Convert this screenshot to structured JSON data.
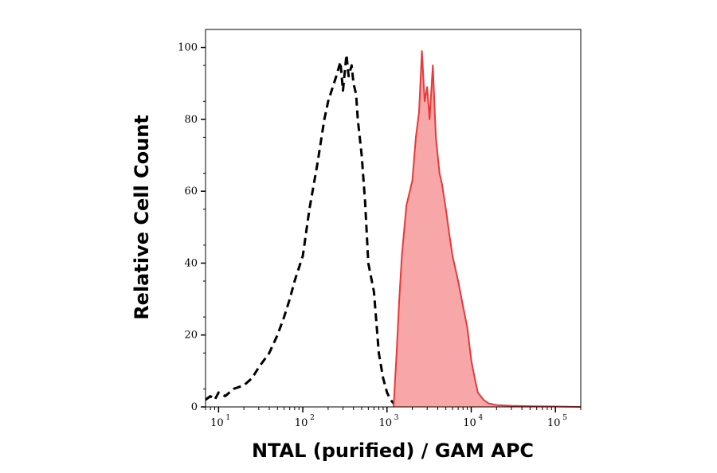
{
  "chart_data": {
    "type": "area",
    "xlabel": "NTAL (purified) / GAM APC",
    "ylabel": "Relative Cell Count",
    "x_scale": "log",
    "xlim": [
      7,
      200000
    ],
    "ylim": [
      0,
      105
    ],
    "y_ticks": [
      {
        "value": 0,
        "label": "0"
      },
      {
        "value": 20,
        "label": "20"
      },
      {
        "value": 40,
        "label": "40"
      },
      {
        "value": 60,
        "label": "60"
      },
      {
        "value": 80,
        "label": "80"
      },
      {
        "value": 100,
        "label": "100"
      }
    ],
    "x_ticks": [
      {
        "value": 10,
        "base": "10",
        "exp": "1"
      },
      {
        "value": 100,
        "base": "10",
        "exp": "2"
      },
      {
        "value": 1000,
        "base": "10",
        "exp": "3"
      },
      {
        "value": 10000,
        "base": "10",
        "exp": "4"
      },
      {
        "value": 100000,
        "base": "10",
        "exp": "5"
      }
    ],
    "grid": false,
    "series": [
      {
        "style": "dashed-outline",
        "color": "#000000",
        "x": [
          7,
          8,
          9,
          10,
          12,
          15,
          20,
          25,
          30,
          40,
          50,
          60,
          70,
          80,
          100,
          120,
          150,
          180,
          200,
          250,
          280,
          300,
          330,
          350,
          380,
          400,
          430,
          450,
          500,
          550,
          600,
          700,
          800,
          900,
          1000,
          1100,
          1200,
          1300
        ],
        "y": [
          2,
          3,
          2,
          4,
          3,
          5,
          6,
          8,
          11,
          15,
          20,
          25,
          30,
          35,
          42,
          55,
          68,
          80,
          85,
          92,
          96,
          88,
          98,
          92,
          95,
          90,
          87,
          80,
          70,
          57,
          40,
          32,
          15,
          8,
          4,
          2,
          1,
          0
        ]
      },
      {
        "style": "filled",
        "color": "#e8383a",
        "fill": "#f8a7a8",
        "x": [
          1200,
          1300,
          1400,
          1500,
          1700,
          2000,
          2200,
          2400,
          2600,
          2800,
          3000,
          3200,
          3500,
          3800,
          4000,
          4200,
          4500,
          5000,
          5500,
          6000,
          7000,
          8000,
          9000,
          10000,
          11000,
          12000,
          14000,
          16000,
          20000,
          30000,
          50000,
          100000,
          200000
        ],
        "y": [
          0,
          15,
          30,
          42,
          56,
          63,
          75,
          82,
          99,
          85,
          89,
          80,
          95,
          75,
          70,
          65,
          62,
          55,
          48,
          42,
          35,
          28,
          22,
          13,
          8,
          4,
          2,
          1,
          0.5,
          0.3,
          0.2,
          0.1,
          0
        ]
      }
    ]
  }
}
